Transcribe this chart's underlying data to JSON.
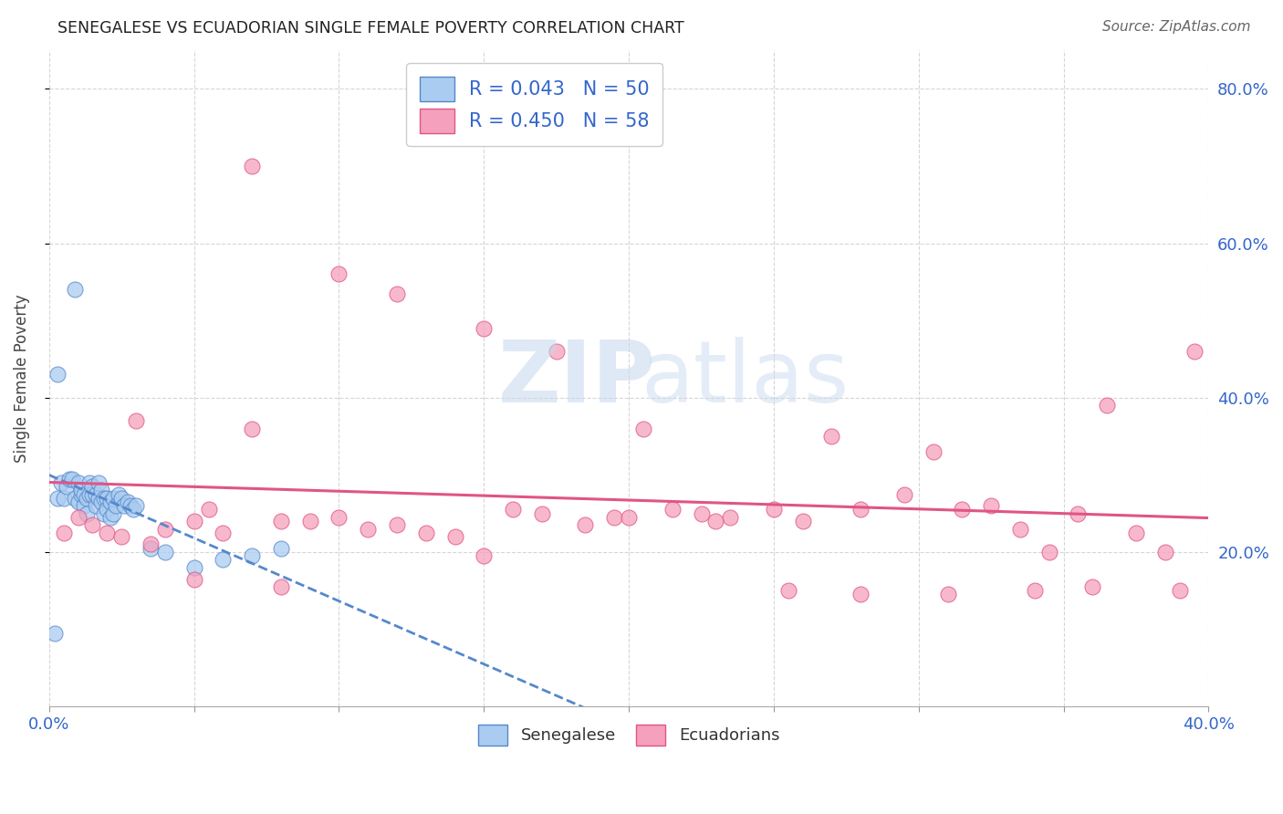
{
  "title": "SENEGALESE VS ECUADORIAN SINGLE FEMALE POVERTY CORRELATION CHART",
  "source": "Source: ZipAtlas.com",
  "ylabel": "Single Female Poverty",
  "legend_line1": "R = 0.043   N = 50",
  "legend_line2": "R = 0.450   N = 58",
  "senegalese_color": "#aaccf0",
  "ecuadorian_color": "#f5a0bc",
  "trendline_sen_color": "#5588cc",
  "trendline_ecu_color": "#e05585",
  "background_color": "#ffffff",
  "grid_color": "#cccccc",
  "axis_label_color": "#3366cc",
  "xlim": [
    0.0,
    0.4
  ],
  "ylim": [
    0.0,
    0.85
  ],
  "yticks": [
    0.2,
    0.4,
    0.6,
    0.8
  ],
  "ytick_labels": [
    "20.0%",
    "40.0%",
    "60.0%",
    "80.0%"
  ],
  "sen_x": [
    0.002,
    0.003,
    0.004,
    0.005,
    0.006,
    0.007,
    0.008,
    0.009,
    0.01,
    0.01,
    0.011,
    0.011,
    0.012,
    0.012,
    0.013,
    0.013,
    0.014,
    0.014,
    0.015,
    0.015,
    0.016,
    0.016,
    0.017,
    0.017,
    0.018,
    0.018,
    0.019,
    0.019,
    0.02,
    0.02,
    0.021,
    0.021,
    0.022,
    0.022,
    0.023,
    0.024,
    0.025,
    0.026,
    0.027,
    0.028,
    0.029,
    0.03,
    0.035,
    0.04,
    0.05,
    0.06,
    0.07,
    0.08,
    0.009,
    0.003
  ],
  "sen_y": [
    0.095,
    0.27,
    0.29,
    0.27,
    0.285,
    0.295,
    0.295,
    0.27,
    0.29,
    0.265,
    0.275,
    0.28,
    0.26,
    0.275,
    0.27,
    0.25,
    0.29,
    0.275,
    0.275,
    0.285,
    0.26,
    0.275,
    0.27,
    0.29,
    0.28,
    0.265,
    0.27,
    0.25,
    0.27,
    0.255,
    0.245,
    0.265,
    0.25,
    0.27,
    0.26,
    0.275,
    0.27,
    0.26,
    0.265,
    0.26,
    0.255,
    0.26,
    0.205,
    0.2,
    0.18,
    0.19,
    0.195,
    0.205,
    0.54,
    0.43
  ],
  "ecu_x": [
    0.005,
    0.01,
    0.015,
    0.02,
    0.025,
    0.03,
    0.035,
    0.04,
    0.05,
    0.055,
    0.06,
    0.07,
    0.08,
    0.09,
    0.1,
    0.11,
    0.12,
    0.13,
    0.14,
    0.15,
    0.16,
    0.17,
    0.185,
    0.195,
    0.205,
    0.215,
    0.225,
    0.235,
    0.25,
    0.26,
    0.27,
    0.28,
    0.295,
    0.305,
    0.315,
    0.325,
    0.335,
    0.345,
    0.355,
    0.365,
    0.375,
    0.385,
    0.395,
    0.07,
    0.1,
    0.12,
    0.15,
    0.175,
    0.2,
    0.23,
    0.255,
    0.28,
    0.31,
    0.34,
    0.36,
    0.39,
    0.05,
    0.08
  ],
  "ecu_y": [
    0.225,
    0.245,
    0.235,
    0.225,
    0.22,
    0.37,
    0.21,
    0.23,
    0.24,
    0.255,
    0.225,
    0.36,
    0.24,
    0.24,
    0.245,
    0.23,
    0.235,
    0.225,
    0.22,
    0.195,
    0.255,
    0.25,
    0.235,
    0.245,
    0.36,
    0.255,
    0.25,
    0.245,
    0.255,
    0.24,
    0.35,
    0.255,
    0.275,
    0.33,
    0.255,
    0.26,
    0.23,
    0.2,
    0.25,
    0.39,
    0.225,
    0.2,
    0.46,
    0.7,
    0.56,
    0.535,
    0.49,
    0.46,
    0.245,
    0.24,
    0.15,
    0.145,
    0.145,
    0.15,
    0.155,
    0.15,
    0.165,
    0.155
  ]
}
